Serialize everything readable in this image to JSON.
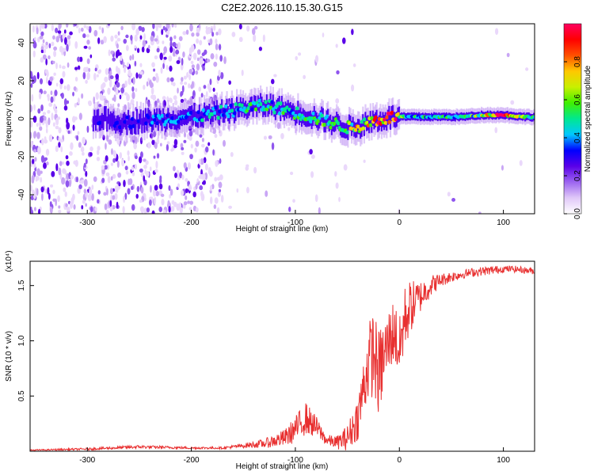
{
  "figure": {
    "title": "C2E2.2026.110.15.30.G15"
  },
  "chart_data": [
    {
      "type": "heatmap",
      "xlabel": "Height of straight line (km)",
      "ylabel": "Frequency (Hz)",
      "xlim": [
        -355,
        130
      ],
      "ylim": [
        -50,
        50
      ],
      "xticks": [
        -300,
        -200,
        -100,
        0,
        100
      ],
      "yticks": [
        -40,
        -20,
        0,
        20,
        40
      ],
      "colorbar": {
        "label": "Normalized spectral amplitude",
        "range": [
          0,
          1
        ],
        "ticks": [
          "0.0",
          "0.2",
          "0.4",
          "0.6",
          "0.8"
        ],
        "colormap": [
          "#ffffff",
          "#e0c8f8",
          "#9c64f0",
          "#5a00e8",
          "#0000ff",
          "#00c8ff",
          "#00e890",
          "#40f000",
          "#c8f000",
          "#ffc800",
          "#ff5000",
          "#ff0000",
          "#ff0060"
        ]
      },
      "ridge": {
        "description": "frequency of main spectral ridge vs height",
        "x": [
          -285,
          -265,
          -245,
          -225,
          -205,
          -185,
          -165,
          -145,
          -125,
          -105,
          -85,
          -65,
          -55,
          -45,
          -35,
          -25,
          -15,
          -5,
          5,
          20,
          40,
          60,
          80,
          100,
          120,
          130
        ],
        "freq": [
          0,
          -2,
          -1,
          0,
          1,
          2,
          4,
          6,
          7,
          4,
          1,
          -2,
          -4,
          -5,
          -3,
          -1,
          0,
          1,
          1,
          1,
          1,
          1,
          2,
          2,
          1,
          1
        ],
        "amplitude": [
          0.25,
          0.3,
          0.3,
          0.35,
          0.35,
          0.4,
          0.4,
          0.45,
          0.45,
          0.45,
          0.5,
          0.5,
          0.55,
          0.6,
          0.7,
          0.75,
          0.85,
          0.95,
          0.5,
          0.45,
          0.45,
          0.45,
          0.6,
          0.95,
          0.5,
          0.45
        ]
      }
    },
    {
      "type": "line",
      "xlabel": "Height of straight line (km)",
      "ylabel": "SNR (10 * v/v)",
      "scale_note": "(x10⁴)",
      "xlim": [
        -355,
        130
      ],
      "ylim": [
        0,
        1.72
      ],
      "xticks": [
        -300,
        -200,
        -100,
        0,
        100
      ],
      "yticks": [
        "0.5",
        "1.0",
        "1.5"
      ],
      "color": "#e83030",
      "series": [
        {
          "x": [
            -355,
            -300,
            -250,
            -200,
            -170,
            -150,
            -130,
            -110,
            -100,
            -90,
            -80,
            -70,
            -60,
            -50,
            -40,
            -30,
            -25,
            -20,
            -15,
            -10,
            -5,
            0,
            5,
            10,
            20,
            30,
            40,
            50,
            60,
            70,
            80,
            90,
            100,
            110,
            120,
            130
          ],
          "y": [
            0.01,
            0.02,
            0.04,
            0.03,
            0.03,
            0.05,
            0.07,
            0.12,
            0.2,
            0.3,
            0.22,
            0.1,
            0.08,
            0.12,
            0.3,
            0.8,
            0.9,
            0.7,
            0.85,
            1.0,
            1.1,
            0.9,
            1.2,
            1.3,
            1.4,
            1.5,
            1.55,
            1.58,
            1.6,
            1.62,
            1.63,
            1.64,
            1.65,
            1.65,
            1.64,
            1.63
          ],
          "noise": [
            0.005,
            0.01,
            0.015,
            0.01,
            0.01,
            0.02,
            0.04,
            0.08,
            0.12,
            0.15,
            0.1,
            0.05,
            0.06,
            0.12,
            0.2,
            0.35,
            0.4,
            0.4,
            0.35,
            0.3,
            0.3,
            0.3,
            0.3,
            0.25,
            0.15,
            0.1,
            0.06,
            0.05,
            0.04,
            0.04,
            0.04,
            0.04,
            0.03,
            0.03,
            0.03,
            0.03
          ]
        }
      ]
    }
  ]
}
